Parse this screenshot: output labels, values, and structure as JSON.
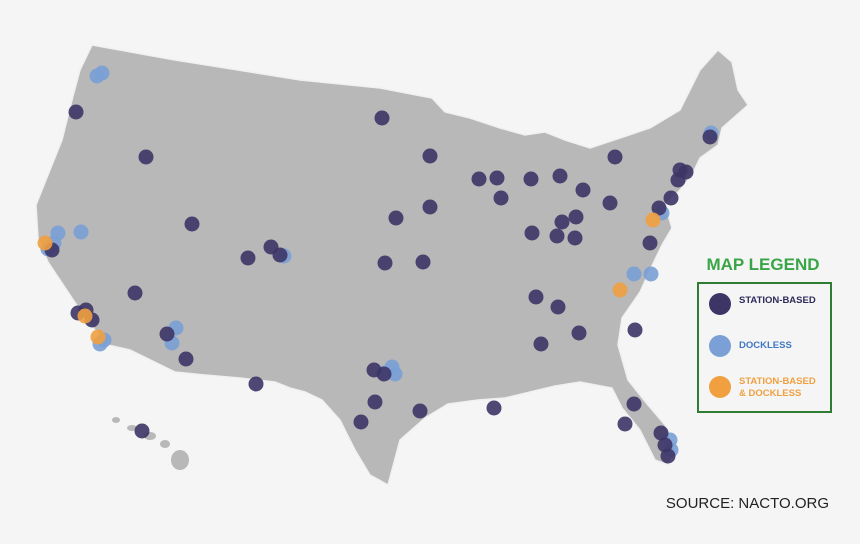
{
  "legend": {
    "title": "MAP LEGEND",
    "items": [
      {
        "label_lines": [
          "STATION-BASED"
        ]
      },
      {
        "label_lines": [
          "DOCKLESS"
        ]
      },
      {
        "label_lines": [
          "STATION-BASED",
          "& DOCKLESS"
        ]
      }
    ]
  },
  "source": "SOURCE: NACTO.ORG"
}
